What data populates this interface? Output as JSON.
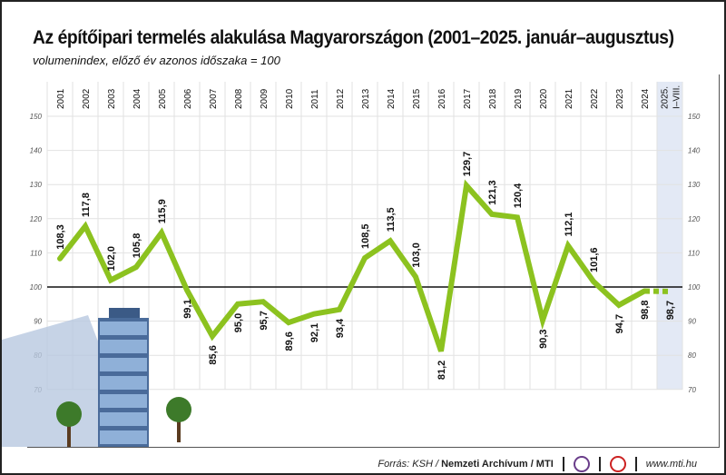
{
  "chart_data": {
    "type": "line",
    "title": "Az építőipari termelés alakulása Magyarországon (2001–2025. január–augusztus)",
    "subtitle": "volumenindex, előző év azonos időszaka = 100",
    "categories": [
      "2001",
      "2002",
      "2003",
      "2004",
      "2005",
      "2006",
      "2007",
      "2008",
      "2009",
      "2010",
      "2011",
      "2012",
      "2013",
      "2014",
      "2015",
      "2016",
      "2017",
      "2018",
      "2019",
      "2020",
      "2021",
      "2022",
      "2023",
      "2024",
      "2025. I–VIII."
    ],
    "values": [
      108.3,
      117.8,
      102.0,
      105.8,
      115.9,
      99.1,
      85.6,
      95.0,
      95.7,
      89.6,
      92.1,
      93.4,
      108.5,
      113.5,
      103.0,
      81.2,
      129.7,
      121.3,
      120.4,
      90.3,
      112.1,
      101.6,
      94.7,
      98.8,
      98.7
    ],
    "value_labels": [
      "108,3",
      "117,8",
      "102,0",
      "105,8",
      "115,9",
      "99,1",
      "85,6",
      "95,0",
      "95,7",
      "89,6",
      "92,1",
      "93,4",
      "108,5",
      "113,5",
      "103,0",
      "81,2",
      "129,7",
      "121,3",
      "120,4",
      "90,3",
      "112,1",
      "101,6",
      "94,7",
      "98,8",
      "98,7"
    ],
    "ylim": [
      70,
      150
    ],
    "yticks": [
      "70",
      "80",
      "90",
      "100",
      "110",
      "120",
      "130",
      "140",
      "150"
    ],
    "reference_line": 100,
    "grid": true,
    "line_color": "#8cc21f",
    "highlight_color": "#e3e9f5"
  },
  "footer": {
    "source_prefix": "Forrás: KSH / ",
    "source_bold": "Nemzeti Archívum / MTI",
    "website": "www.mti.hu",
    "logos": [
      "MTVA",
      "MTI"
    ]
  }
}
